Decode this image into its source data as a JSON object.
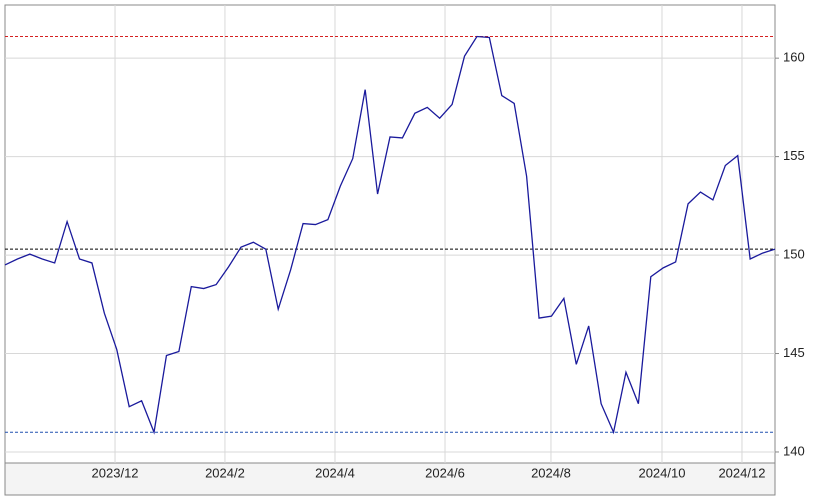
{
  "chart_data": {
    "type": "line",
    "x": [
      0,
      1,
      2,
      3,
      4,
      5,
      6,
      7,
      8,
      9,
      10,
      11,
      12,
      13,
      14,
      15,
      16,
      17,
      18,
      19,
      20,
      21,
      22,
      23,
      24,
      25,
      26,
      27,
      28,
      29,
      30,
      31,
      32,
      33,
      34,
      35,
      36,
      37,
      38,
      39,
      40,
      41,
      42,
      43,
      44,
      45,
      46,
      47,
      48,
      49,
      50,
      51,
      52,
      53,
      54,
      55,
      56,
      57,
      58,
      59,
      60,
      61,
      62
    ],
    "series": [
      {
        "color": "#1a1a9c",
        "values": [
          149.5,
          149.8,
          150.05,
          149.8,
          149.6,
          151.7,
          149.8,
          149.6,
          147.05,
          145.2,
          142.3,
          142.6,
          141.0,
          144.9,
          145.1,
          148.4,
          148.3,
          148.5,
          149.4,
          150.4,
          150.65,
          150.3,
          147.25,
          149.25,
          151.6,
          151.55,
          151.8,
          153.5,
          154.9,
          158.4,
          153.1,
          156.0,
          155.95,
          157.2,
          157.5,
          156.95,
          157.65,
          160.1,
          161.1,
          161.05,
          158.1,
          157.7,
          154.0,
          146.8,
          146.9,
          147.8,
          144.45,
          146.4,
          142.45,
          141.0,
          144.05,
          142.45,
          148.9,
          149.35,
          149.65,
          152.6,
          153.2,
          152.8,
          154.55,
          155.05,
          149.8,
          150.1,
          150.3
        ]
      }
    ],
    "xlim": [
      0,
      62
    ],
    "xticks": [
      {
        "value": 8.86,
        "label": "2023/12"
      },
      {
        "value": 17.71,
        "label": "2024/2"
      },
      {
        "value": 26.57,
        "label": "2024/4"
      },
      {
        "value": 35.43,
        "label": "2024/6"
      },
      {
        "value": 43.96,
        "label": "2024/8"
      },
      {
        "value": 52.9,
        "label": "2024/10"
      },
      {
        "value": 59.34,
        "label": "2024/12"
      }
    ],
    "ylim": [
      139.44,
      162.7
    ],
    "yticks": [
      140,
      145,
      150,
      155,
      160
    ],
    "grid": true,
    "reference_lines": [
      {
        "value": 161.1,
        "color": "#d62020"
      },
      {
        "value": 150.3,
        "color": "#000000"
      },
      {
        "value": 141.0,
        "color": "#2050b0"
      }
    ]
  }
}
